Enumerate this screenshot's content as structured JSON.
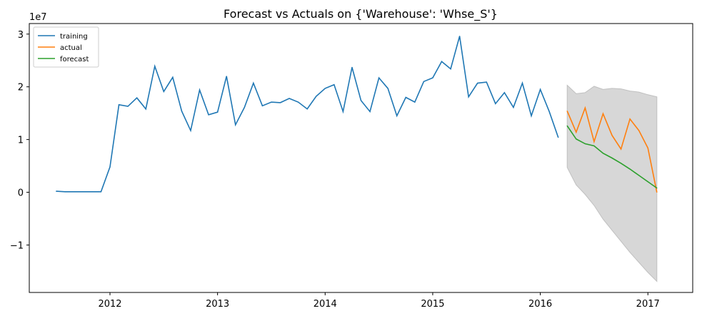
{
  "chart_data": {
    "type": "line",
    "title": "Forecast vs Actuals on {'Warehouse': 'Whse_S'}",
    "y_offset_label": "1e7",
    "xlabel": "",
    "ylabel": "",
    "x_ticks": [
      "2012",
      "2013",
      "2014",
      "2015",
      "2016",
      "2017"
    ],
    "y_ticks": [
      {
        "value": -1,
        "label": "−1"
      },
      {
        "value": 0,
        "label": "0"
      },
      {
        "value": 1,
        "label": "1"
      },
      {
        "value": 2,
        "label": "2"
      },
      {
        "value": 3,
        "label": "3"
      }
    ],
    "xlim": [
      "2011-04",
      "2017-06"
    ],
    "ylim": [
      -1.9,
      3.2
    ],
    "y_units": "1e7",
    "grid": false,
    "legend": {
      "placement": "top-left",
      "entries": [
        {
          "name": "training",
          "color": "#1f77b4"
        },
        {
          "name": "actual",
          "color": "#ff7f0e"
        },
        {
          "name": "forecast",
          "color": "#2ca02c"
        }
      ]
    },
    "series": [
      {
        "name": "training",
        "color": "#1f77b4",
        "x": [
          "2011-07",
          "2011-08",
          "2011-09",
          "2011-10",
          "2011-11",
          "2011-12",
          "2012-01",
          "2012-02",
          "2012-03",
          "2012-04",
          "2012-05",
          "2012-06",
          "2012-07",
          "2012-08",
          "2012-09",
          "2012-10",
          "2012-11",
          "2012-12",
          "2013-01",
          "2013-02",
          "2013-03",
          "2013-04",
          "2013-05",
          "2013-06",
          "2013-07",
          "2013-08",
          "2013-09",
          "2013-10",
          "2013-11",
          "2013-12",
          "2014-01",
          "2014-02",
          "2014-03",
          "2014-04",
          "2014-05",
          "2014-06",
          "2014-07",
          "2014-08",
          "2014-09",
          "2014-10",
          "2014-11",
          "2014-12",
          "2015-01",
          "2015-02",
          "2015-03",
          "2015-04",
          "2015-05",
          "2015-06",
          "2015-07",
          "2015-08",
          "2015-09",
          "2015-10",
          "2015-11",
          "2015-12",
          "2016-01",
          "2016-02",
          "2016-03"
        ],
        "values": [
          0.02,
          0.01,
          0.01,
          0.01,
          0.01,
          0.01,
          0.48,
          1.66,
          1.63,
          1.79,
          1.58,
          2.39,
          1.91,
          2.18,
          1.54,
          1.17,
          1.94,
          1.47,
          1.52,
          2.2,
          1.28,
          1.61,
          2.07,
          1.64,
          1.71,
          1.7,
          1.78,
          1.71,
          1.58,
          1.82,
          1.97,
          2.04,
          1.53,
          2.37,
          1.74,
          1.53,
          2.17,
          1.97,
          1.45,
          1.8,
          1.71,
          2.1,
          2.17,
          2.48,
          2.34,
          2.96,
          1.81,
          2.07,
          2.09,
          1.68,
          1.89,
          1.61,
          2.07,
          1.45,
          1.95,
          1.53,
          1.04
        ]
      },
      {
        "name": "actual",
        "color": "#ff7f0e",
        "x": [
          "2016-04",
          "2016-05",
          "2016-06",
          "2016-07",
          "2016-08",
          "2016-09",
          "2016-10",
          "2016-11",
          "2016-12",
          "2017-01",
          "2017-02"
        ],
        "values": [
          1.54,
          1.14,
          1.6,
          0.96,
          1.49,
          1.08,
          0.82,
          1.39,
          1.17,
          0.84,
          0.0
        ]
      },
      {
        "name": "forecast",
        "color": "#2ca02c",
        "x": [
          "2016-04",
          "2016-05",
          "2016-06",
          "2016-07",
          "2016-08",
          "2016-09",
          "2016-10",
          "2016-11",
          "2016-12",
          "2017-01",
          "2017-02"
        ],
        "values": [
          1.26,
          1.01,
          0.92,
          0.88,
          0.74,
          0.65,
          0.55,
          0.44,
          0.32,
          0.2,
          0.08
        ]
      }
    ],
    "confidence_band": {
      "color": "#d3d3d3",
      "x": [
        "2016-04",
        "2016-05",
        "2016-06",
        "2016-07",
        "2016-08",
        "2016-09",
        "2016-10",
        "2016-11",
        "2016-12",
        "2017-01",
        "2017-02"
      ],
      "upper": [
        2.03,
        1.87,
        1.89,
        2.01,
        1.95,
        1.97,
        1.96,
        1.92,
        1.9,
        1.85,
        1.81
      ],
      "lower": [
        0.47,
        0.14,
        -0.04,
        -0.25,
        -0.51,
        -0.72,
        -0.93,
        -1.14,
        -1.33,
        -1.52,
        -1.69
      ]
    }
  }
}
